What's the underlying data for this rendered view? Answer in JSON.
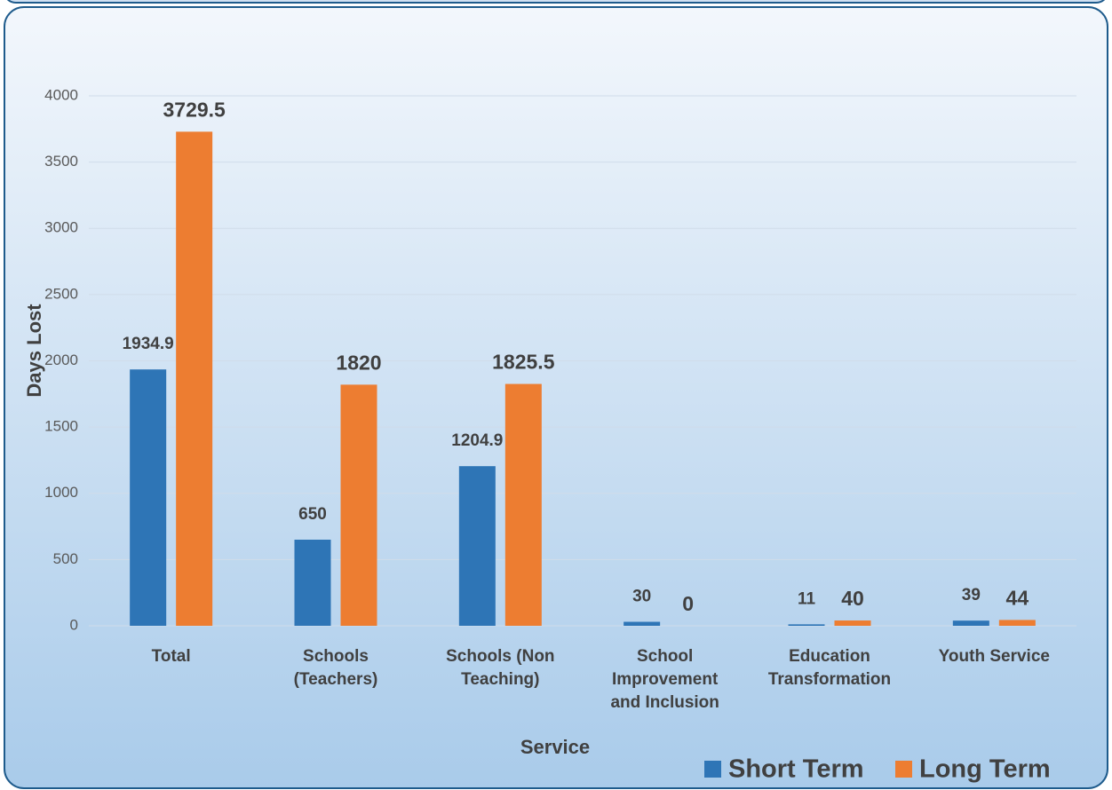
{
  "chart_data": {
    "type": "bar",
    "x_label": "Service",
    "y_label": "Days Lost",
    "categories": [
      [
        "Total"
      ],
      [
        "Schools",
        "(Teachers)"
      ],
      [
        "Schools (Non",
        "Teaching)"
      ],
      [
        "School",
        "Improvement",
        "and Inclusion"
      ],
      [
        "Education",
        "Transformation"
      ],
      [
        "Youth Service"
      ]
    ],
    "series": [
      {
        "name": "Short Term",
        "color": "#2e75b6",
        "values": [
          1934.9,
          650,
          1204.9,
          30,
          11,
          39
        ]
      },
      {
        "name": "Long Term",
        "color": "#ed7d31",
        "values": [
          3729.5,
          1820,
          1825.5,
          0,
          40,
          44
        ]
      }
    ],
    "ylim": [
      0,
      4000
    ],
    "yticks": [
      0,
      500,
      1000,
      1500,
      2000,
      2500,
      3000,
      3500,
      4000
    ],
    "grid": true,
    "legend": "bottom-right"
  }
}
